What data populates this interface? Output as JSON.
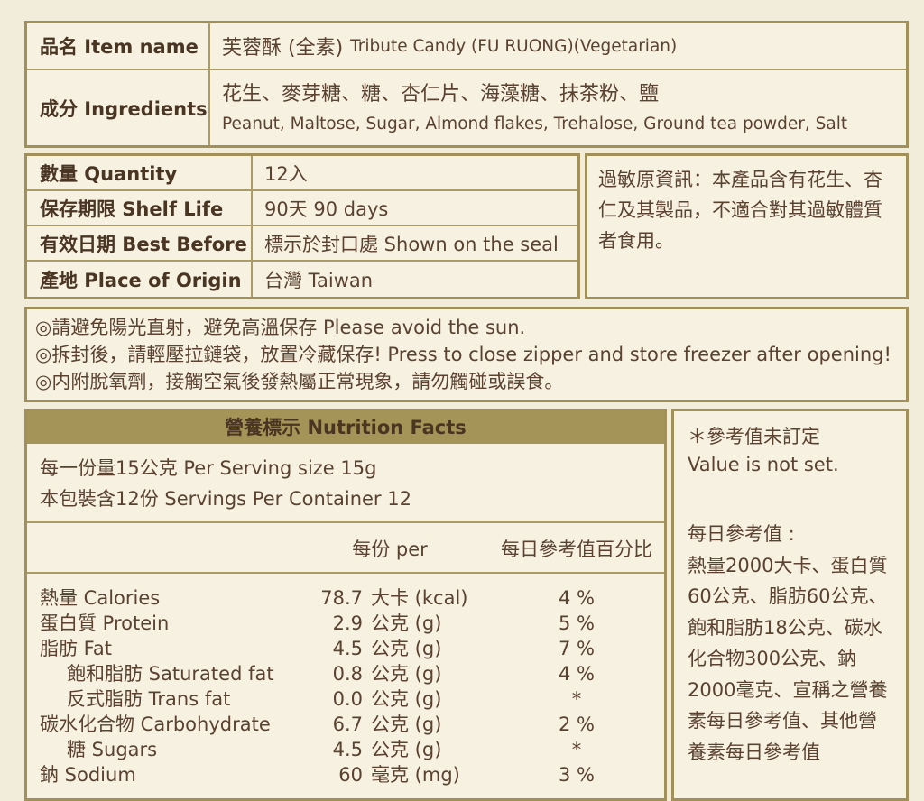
{
  "colors": {
    "page_background": "#f2edda",
    "panel_background": "#f6f1e1",
    "border_gold": "#a2905a",
    "header_bar_gold": "#a59458",
    "text_brown": "#5b4230"
  },
  "product_table": {
    "rows": [
      {
        "label": "品名 Item name",
        "value_zh": "芙蓉酥 (全素)",
        "value_en": "Tribute Candy (FU RUONG)(Vegetarian)"
      },
      {
        "label": "成分 Ingredients",
        "value_zh": "花生、麥芽糖、糖、杏仁片、海藻糖、抹茶粉、鹽",
        "value_en": "Peanut, Maltose, Sugar, Almond flakes, Trehalose, Ground tea powder, Salt"
      }
    ]
  },
  "detail_table": {
    "rows": [
      {
        "label": "數量  Quantity",
        "value": "12入"
      },
      {
        "label": "保存期限  Shelf Life",
        "value": "90天   90 days"
      },
      {
        "label": "有效日期  Best Before",
        "value": "標示於封口處 Shown on the seal"
      },
      {
        "label": "產地  Place of Origin",
        "value": "台灣 Taiwan"
      }
    ],
    "allergen": "過敏原資訊：本產品含有花生、杏仁及其製品，不適合對其過敏體質者食用。"
  },
  "notes": [
    "◎請避免陽光直射，避免高溫保存 Please avoid the sun.",
    "◎拆封後，請輕壓拉鏈袋，放置冷藏保存! Press to close zipper and store freezer after opening!",
    "◎内附脫氧劑，接觸空氣後發熱屬正常現象，請勿觸碰或誤食。"
  ],
  "nutrition": {
    "title": "營養標示 Nutrition Facts",
    "serving_lines": [
      "每一份量15公克  Per Serving size 15g",
      "本包裝含12份  Servings Per Container 12"
    ],
    "col_per": "每份 per",
    "col_dv": "每日參考值百分比",
    "rows": [
      {
        "label": "熱量 Calories",
        "amount": "78.7",
        "unit": "大卡 (kcal)",
        "dv": "4 %"
      },
      {
        "label": "蛋白質 Protein",
        "amount": "2.9",
        "unit": "公克 (g)",
        "dv": "5 %"
      },
      {
        "label": "脂肪 Fat",
        "amount": "4.5",
        "unit": "公克 (g)",
        "dv": "7 %"
      },
      {
        "label": "飽和脂肪 Saturated fat",
        "amount": "0.8",
        "unit": "公克 (g)",
        "dv": "4 %"
      },
      {
        "label": "反式脂肪 Trans fat",
        "amount": "0.0",
        "unit": "公克 (g)",
        "dv": "*"
      },
      {
        "label": "碳水化合物 Carbohydrate",
        "amount": "6.7",
        "unit": "公克 (g)",
        "dv": "2 %"
      },
      {
        "label": "糖 Sugars",
        "amount": "4.5",
        "unit": "公克 (g)",
        "dv": "*"
      },
      {
        "label": "鈉 Sodium",
        "amount": "60",
        "unit": "毫克 (mg)",
        "dv": "3 %"
      }
    ],
    "side": {
      "note_zh": "＊參考值未訂定",
      "note_en": "Value is not set.",
      "dv_title": "每日參考值 :",
      "dv_text": "熱量2000大卡、蛋白質60公克、脂肪60公克、飽和脂肪18公克、碳水化合物300公克、鈉2000毫克、宣稱之營養素每日參考值、其他營養素每日參考值"
    }
  }
}
